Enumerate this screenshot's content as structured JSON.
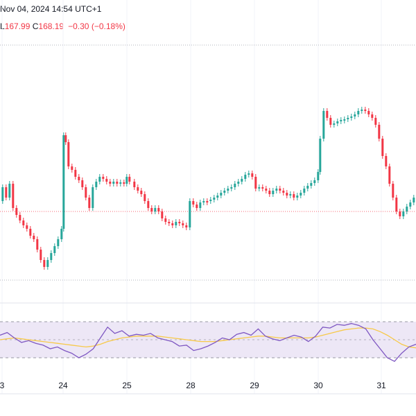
{
  "header": {
    "datetime": "Nov 04, 2024 14:54 UTC+1",
    "low_label": "L",
    "low_value": "167.99",
    "close_label": "C",
    "close_value": "168.19",
    "change_value": "−0.30",
    "change_pct": "(−0.18%)"
  },
  "colors": {
    "up": "#26a69a",
    "down": "#f23645",
    "rsi_line": "#7e57c2",
    "rsi_ma": "#f7c948",
    "rsi_band": "#ede7f6"
  },
  "chart_data": [
    {
      "type": "candlestick",
      "x_ticks": [
        "3",
        "24",
        "25",
        "28",
        "29",
        "30",
        "31"
      ],
      "reference_lines": [
        "dotted"
      ]
    },
    {
      "type": "line",
      "series": [
        {
          "values": [
            55,
            58,
            52,
            47,
            49,
            46,
            44,
            40,
            42,
            38,
            35,
            30,
            34,
            40,
            52,
            64,
            57,
            60,
            54,
            56,
            55,
            57,
            52,
            50,
            48,
            43,
            44,
            38,
            40,
            43,
            47,
            52,
            50,
            56,
            58,
            55,
            62,
            54,
            51,
            49,
            52,
            55,
            53,
            48,
            54,
            64,
            63,
            67,
            66,
            68,
            66,
            62,
            50,
            40,
            30,
            26,
            35,
            42,
            45
          ]
        },
        {
          "values": [
            50,
            51,
            52,
            51,
            50,
            49,
            48,
            47,
            46,
            45,
            44,
            43,
            42,
            43,
            45,
            48,
            50,
            52,
            53,
            54,
            54,
            54,
            54,
            53,
            52,
            51,
            50,
            49,
            48,
            48,
            48,
            49,
            50,
            51,
            52,
            53,
            54,
            54,
            53,
            52,
            52,
            52,
            52,
            52,
            53,
            55,
            57,
            59,
            61,
            62,
            63,
            63,
            62,
            59,
            55,
            50,
            45,
            42,
            41
          ]
        }
      ]
    }
  ]
}
